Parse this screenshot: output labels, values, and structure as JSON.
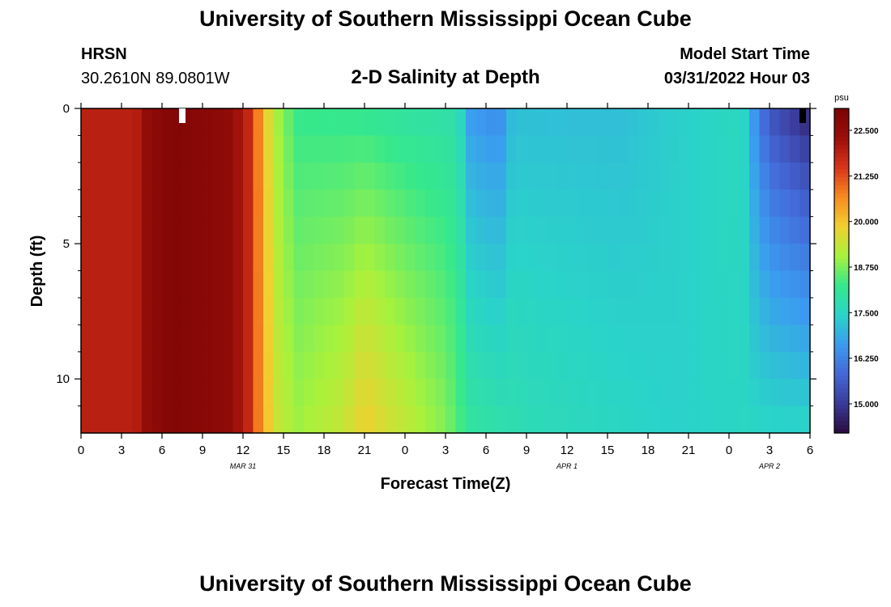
{
  "header": {
    "title": "University of Southern Mississippi Ocean Cube",
    "station_id": "HRSN",
    "station_coords": "30.2610N  89.0801W",
    "subtitle": "2-D Salinity at Depth",
    "model_start_label": "Model Start Time",
    "model_start_value": "03/31/2022 Hour 03"
  },
  "footer": {
    "title": "University of Southern Mississippi Ocean Cube"
  },
  "chart_data": {
    "type": "heatmap",
    "title": "2-D Salinity at Depth",
    "xlabel": "Forecast Time(Z)",
    "ylabel": "Depth (ft)",
    "x_ticks": [
      "0",
      "3",
      "6",
      "9",
      "12",
      "15",
      "18",
      "21",
      "0",
      "3",
      "6",
      "9",
      "12",
      "15",
      "18",
      "21",
      "0",
      "3",
      "6"
    ],
    "x_range_hours": [
      0,
      54
    ],
    "date_labels": [
      {
        "text": "MAR 31",
        "hour": 12
      },
      {
        "text": "APR 1",
        "hour": 36
      },
      {
        "text": "APR 2",
        "hour": 51
      }
    ],
    "y_ticks": [
      "0",
      "5",
      "10"
    ],
    "y_range_ft": [
      0,
      12
    ],
    "y_inverted": true,
    "colorbar": {
      "unit": "psu",
      "ticks": [
        "22.500",
        "21.250",
        "20.000",
        "18.750",
        "17.500",
        "16.250",
        "15.000"
      ],
      "range": [
        14.2,
        23.1
      ],
      "colors": [
        "#2a0b3d",
        "#3a3b9a",
        "#4468d8",
        "#3b9cf0",
        "#2ad4c8",
        "#36e88c",
        "#a8f23c",
        "#f0d030",
        "#f88a20",
        "#d8341a",
        "#9b0f0a",
        "#7a0404"
      ]
    },
    "hour_step": 0.75,
    "depth_step_ft": 1,
    "salinity_profiles": {
      "note_units": "psu",
      "surface_at_hour": [
        [
          0,
          21.9
        ],
        [
          4,
          21.9
        ],
        [
          5,
          22.6
        ],
        [
          7,
          22.9
        ],
        [
          11,
          22.6
        ],
        [
          12.5,
          21.7
        ],
        [
          13.5,
          20.2
        ],
        [
          14.2,
          19.2
        ],
        [
          16,
          18.2
        ],
        [
          20,
          18.1
        ],
        [
          24,
          17.9
        ],
        [
          28,
          17.8
        ],
        [
          28.5,
          16.6
        ],
        [
          31,
          16.3
        ],
        [
          32,
          17.1
        ],
        [
          40,
          17.1
        ],
        [
          43,
          17.3
        ],
        [
          49,
          17.6
        ],
        [
          50,
          16.3
        ],
        [
          51,
          15.4
        ],
        [
          54,
          14.5
        ]
      ],
      "bottom_at_hour": [
        [
          0,
          21.9
        ],
        [
          4,
          21.9
        ],
        [
          5,
          22.6
        ],
        [
          7,
          22.9
        ],
        [
          11,
          22.6
        ],
        [
          12.5,
          21.7
        ],
        [
          13.5,
          20.3
        ],
        [
          14.5,
          19.4
        ],
        [
          16,
          19.0
        ],
        [
          19.5,
          19.4
        ],
        [
          21,
          19.9
        ],
        [
          23,
          19.5
        ],
        [
          27,
          18.8
        ],
        [
          29,
          18.0
        ],
        [
          33,
          17.7
        ],
        [
          40,
          17.5
        ],
        [
          44,
          17.4
        ],
        [
          49,
          17.5
        ],
        [
          51,
          17.5
        ],
        [
          54,
          17.5
        ]
      ]
    }
  }
}
